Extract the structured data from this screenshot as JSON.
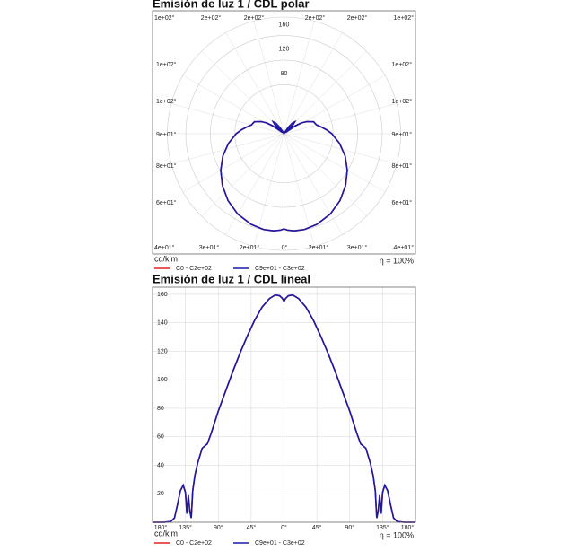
{
  "chart_data": [
    {
      "type": "polar",
      "title": "Emisión de luz 1 / CDL polar",
      "unit": "cd/klm",
      "efficiency": "η = 100%",
      "rlim": [
        0,
        190
      ],
      "rticks": [
        80,
        120,
        160
      ],
      "angle_labels": {
        "top": [
          "1e+02°",
          "2e+02°",
          "2e+02°",
          "2e+02°",
          "2e+02°",
          "1e+02°"
        ],
        "left": [
          "1e+02°",
          "1e+02°",
          "9e+01°",
          "8e+01°",
          "6e+01°"
        ],
        "right": [
          "1e+02°",
          "1e+02°",
          "9e+01°",
          "8e+01°",
          "6e+01°"
        ],
        "bottom": [
          "4e+01°",
          "3e+01°",
          "2e+01°",
          "0°",
          "2e+01°",
          "3e+01°",
          "4e+01°"
        ]
      },
      "x": [
        -180,
        -165,
        -155,
        -150,
        -146,
        -142,
        -138,
        -135,
        -133,
        -131,
        -129,
        -127,
        -125,
        -122,
        -118,
        -112,
        -105,
        -100,
        -95,
        -90,
        -80,
        -70,
        -60,
        -50,
        -40,
        -30,
        -20,
        -12,
        -6,
        -2,
        0,
        2,
        6,
        12,
        20,
        30,
        40,
        50,
        60,
        70,
        80,
        90,
        95,
        100,
        105,
        112,
        118,
        122,
        125,
        127,
        129,
        131,
        133,
        135,
        138,
        142,
        146,
        150,
        155,
        165,
        180
      ],
      "series": [
        {
          "name": "C0 - C2e+02",
          "color": "#e02020",
          "values": [
            0,
            0,
            0.5,
            3,
            12,
            22,
            26,
            21,
            6,
            19,
            8,
            3,
            22,
            33,
            42,
            52,
            55,
            62,
            70,
            78,
            92,
            106,
            119,
            131,
            142,
            151,
            157,
            159.5,
            159,
            157,
            155,
            157,
            159,
            159.5,
            157,
            151,
            142,
            131,
            119,
            106,
            92,
            78,
            70,
            62,
            55,
            52,
            42,
            33,
            22,
            3,
            8,
            19,
            6,
            21,
            26,
            22,
            12,
            3,
            0.5,
            0,
            0
          ]
        },
        {
          "name": "C9e+01 - C3e+02",
          "color": "#1a1aa8",
          "values": [
            0,
            0,
            0.5,
            3,
            12,
            22,
            26,
            21,
            6,
            19,
            8,
            3,
            22,
            33,
            42,
            52,
            55,
            62,
            70,
            78,
            92,
            106,
            119,
            131,
            142,
            151,
            157,
            159.5,
            159,
            157,
            155,
            157,
            159,
            159.5,
            157,
            151,
            142,
            131,
            119,
            106,
            92,
            78,
            70,
            62,
            55,
            52,
            42,
            33,
            22,
            3,
            8,
            19,
            6,
            21,
            26,
            22,
            12,
            3,
            0.5,
            0,
            0
          ]
        }
      ]
    },
    {
      "type": "line",
      "title": "Emisión de luz 1 / CDL lineal",
      "unit": "cd/klm",
      "efficiency": "η = 100%",
      "xlim": [
        -180,
        180
      ],
      "ylim": [
        0,
        165
      ],
      "xticks": [
        {
          "value": -180,
          "label": "180°"
        },
        {
          "value": -135,
          "label": "135°"
        },
        {
          "value": -90,
          "label": "90°"
        },
        {
          "value": -45,
          "label": "45°"
        },
        {
          "value": 0,
          "label": "0°"
        },
        {
          "value": 45,
          "label": "45°"
        },
        {
          "value": 90,
          "label": "90°"
        },
        {
          "value": 135,
          "label": "135°"
        },
        {
          "value": 180,
          "label": "180°"
        }
      ],
      "yticks": [
        20,
        40,
        60,
        80,
        100,
        120,
        140,
        160
      ],
      "grid": true,
      "x": [
        -180,
        -165,
        -155,
        -150,
        -146,
        -142,
        -138,
        -135,
        -133,
        -131,
        -129,
        -127,
        -125,
        -122,
        -118,
        -112,
        -105,
        -100,
        -95,
        -90,
        -80,
        -70,
        -60,
        -50,
        -40,
        -30,
        -20,
        -12,
        -6,
        -2,
        0,
        2,
        6,
        12,
        20,
        30,
        40,
        50,
        60,
        70,
        80,
        90,
        95,
        100,
        105,
        112,
        118,
        122,
        125,
        127,
        129,
        131,
        133,
        135,
        138,
        142,
        146,
        150,
        155,
        165,
        180
      ],
      "series": [
        {
          "name": "C0 - C2e+02",
          "color": "#e02020",
          "values": [
            0,
            0,
            0.5,
            3,
            12,
            22,
            26,
            21,
            6,
            19,
            8,
            3,
            22,
            33,
            42,
            52,
            55,
            62,
            70,
            78,
            92,
            106,
            119,
            131,
            142,
            151,
            157,
            159.5,
            159,
            157,
            155,
            157,
            159,
            159.5,
            157,
            151,
            142,
            131,
            119,
            106,
            92,
            78,
            70,
            62,
            55,
            52,
            42,
            33,
            22,
            3,
            8,
            19,
            6,
            21,
            26,
            22,
            12,
            3,
            0.5,
            0,
            0
          ]
        },
        {
          "name": "C9e+01 - C3e+02",
          "color": "#1a1aa8",
          "values": [
            0,
            0,
            0.5,
            3,
            12,
            22,
            26,
            21,
            6,
            19,
            8,
            3,
            22,
            33,
            42,
            52,
            55,
            62,
            70,
            78,
            92,
            106,
            119,
            131,
            142,
            151,
            157,
            159.5,
            159,
            157,
            155,
            157,
            159,
            159.5,
            157,
            151,
            142,
            131,
            119,
            106,
            92,
            78,
            70,
            62,
            55,
            52,
            42,
            33,
            22,
            3,
            8,
            19,
            6,
            21,
            26,
            22,
            12,
            3,
            0.5,
            0,
            0
          ]
        }
      ]
    }
  ]
}
